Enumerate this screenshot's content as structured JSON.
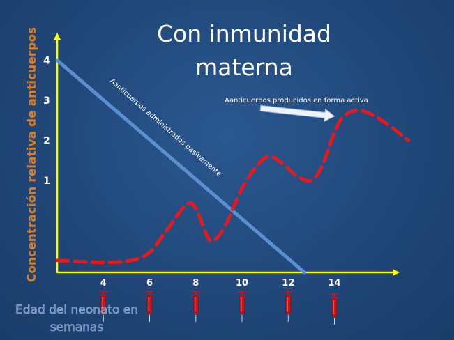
{
  "chart_data": {
    "type": "line",
    "title_lines": [
      "Con  inmunidad",
      "materna"
    ],
    "ylabel": "Concentración relativa de anticuerpos",
    "xlabel_lines": [
      "Edad del neonato en",
      "semanas"
    ],
    "xticks": [
      "4",
      "6",
      "8",
      "10",
      "12",
      "14"
    ],
    "yticks": [
      "1",
      "2",
      "3",
      "4"
    ],
    "series": [
      {
        "name": "Aanticuerpos administrados pasivamente",
        "style": "solid",
        "color": "#5b8fd0",
        "points": [
          [
            2,
            4.0
          ],
          [
            12.7,
            -1.3
          ]
        ]
      },
      {
        "name": "Aanticuerpos producidos en forma activa",
        "style": "dashed",
        "color": "#e8191c",
        "points": [
          [
            2,
            -1.0
          ],
          [
            4,
            -1.05
          ],
          [
            5.2,
            -1.0
          ],
          [
            6,
            -0.8
          ],
          [
            6.8,
            -0.2
          ],
          [
            7.6,
            0.4
          ],
          [
            8.0,
            0.3
          ],
          [
            8.5,
            -0.4
          ],
          [
            8.8,
            -0.5
          ],
          [
            9.3,
            -0.1
          ],
          [
            10.0,
            0.8
          ],
          [
            10.7,
            1.4
          ],
          [
            11.2,
            1.6
          ],
          [
            11.8,
            1.4
          ],
          [
            12.4,
            1.1
          ],
          [
            13.0,
            1.0
          ],
          [
            13.5,
            1.4
          ],
          [
            14.0,
            2.2
          ],
          [
            14.4,
            2.6
          ],
          [
            15.0,
            2.75
          ],
          [
            15.6,
            2.65
          ],
          [
            16.3,
            2.4
          ],
          [
            17.2,
            2.0
          ]
        ]
      }
    ],
    "annotation_arrow": {
      "from": [
        10.8,
        2.8
      ],
      "to": [
        14.0,
        2.6
      ]
    },
    "xlim": [
      2,
      18
    ],
    "ylim": [
      -1.3,
      4.6
    ],
    "grid": false,
    "legend": "none",
    "syringe_ages": [
      4,
      6,
      8,
      10,
      12,
      14
    ],
    "colors": {
      "background": "#1f4677",
      "axis": "#ffff00",
      "passive_line": "#5b8fd0",
      "active_line": "#e8191c",
      "ylabel": "#e07b1a",
      "syringe": "#c8141a"
    }
  }
}
